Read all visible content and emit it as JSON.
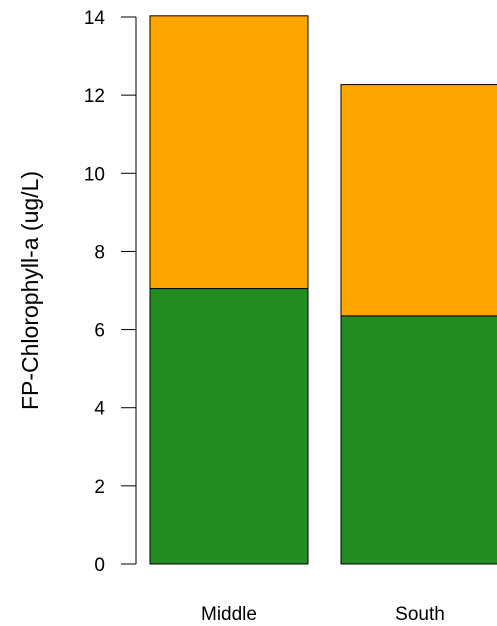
{
  "chart_data": {
    "type": "bar",
    "stacked": true,
    "categories": [
      "Middle",
      "South"
    ],
    "series": [
      {
        "values": [
          7.05,
          6.35
        ],
        "color": "#228B22"
      },
      {
        "values": [
          6.98,
          5.92
        ],
        "color": "#FFA500"
      }
    ],
    "ylabel": "FP-Chlorophyll-a (ug/L)",
    "ylim": [
      0,
      14
    ],
    "yticks": [
      0,
      2,
      4,
      6,
      8,
      10,
      12,
      14
    ],
    "grid": false
  }
}
